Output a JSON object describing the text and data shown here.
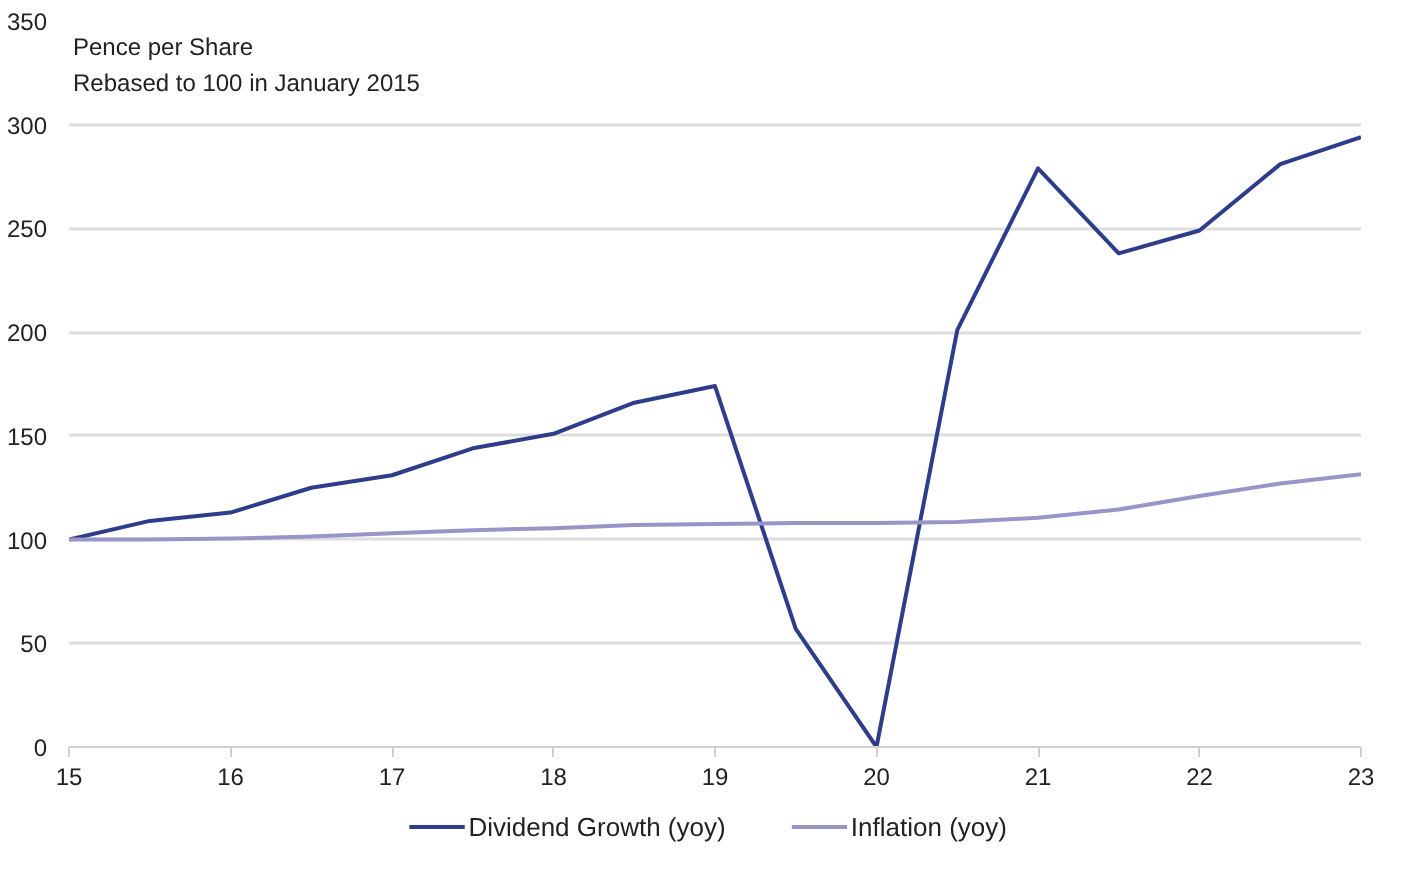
{
  "chart_data": {
    "type": "line",
    "x": [
      15,
      15.5,
      16,
      16.5,
      17,
      17.5,
      18,
      18.5,
      19,
      19.5,
      20,
      20.5,
      21,
      21.5,
      22,
      22.5,
      23
    ],
    "series": [
      {
        "name": "Dividend Growth (yoy)",
        "color": "#2e3d8a",
        "values": [
          100,
          109,
          113,
          125,
          131,
          144,
          151,
          166,
          174,
          57,
          0,
          201,
          279,
          238,
          249,
          281,
          294
        ]
      },
      {
        "name": "Inflation (yoy)",
        "color": "#9896c8",
        "values": [
          100,
          100,
          100.5,
          101.5,
          103,
          104.5,
          105.5,
          107,
          107.5,
          108,
          108,
          108.5,
          110.5,
          114.5,
          121,
          127,
          131.5
        ]
      }
    ],
    "annotations": [
      "Pence per Share",
      "Rebased to 100 in January 2015"
    ],
    "xlim": [
      15,
      23
    ],
    "xticks": [
      15,
      16,
      17,
      18,
      19,
      20,
      21,
      22,
      23
    ],
    "ylim": [
      0,
      350
    ],
    "yticks": [
      0,
      50,
      100,
      150,
      200,
      250,
      300,
      350
    ],
    "grid": "y",
    "legend": "bottom",
    "marker": "none",
    "line_style": "solid"
  }
}
